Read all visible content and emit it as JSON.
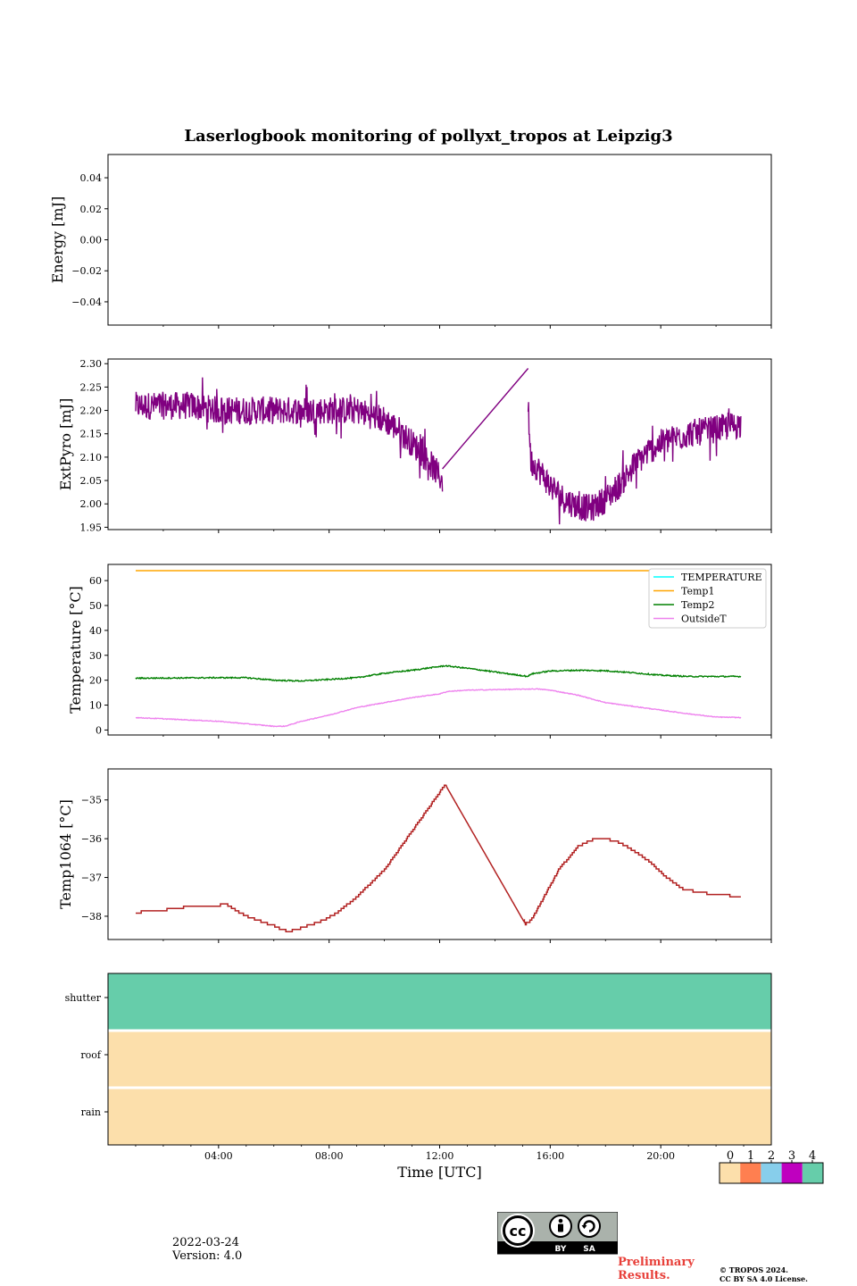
{
  "title": "Laserlogbook monitoring of pollyxt_tropos at Leipzig3",
  "footer": {
    "date": "2022-03-24",
    "version": "Version: 4.0",
    "preliminary_line1": "Preliminary",
    "preliminary_line2": "Results.",
    "copyright_line1": "© TROPOS 2024.",
    "copyright_line2": "CC BY SA 4.0 License.",
    "cc_label_by": "BY",
    "cc_label_sa": "SA",
    "cc_label_cc": "cc"
  },
  "colors": {
    "extpyro": "#800080",
    "temperature": "#00ffff",
    "temp1": "#ffa500",
    "temp2": "#008000",
    "outside": "#ee82ee",
    "temp1064": "#b22222",
    "status": [
      "#fcdfab",
      "#ff7f50",
      "#87ceeb",
      "#bf00bf",
      "#66cdaa"
    ]
  },
  "chart_data": [
    {
      "type": "line",
      "id": "energy",
      "ylabel": "Energy [mJ]",
      "ylim": [
        -0.055,
        0.055
      ],
      "yticks": [
        0.04,
        0.02,
        0.0,
        -0.02,
        -0.04
      ],
      "ytick_labels": [
        "0.04",
        "0.02",
        "0.00",
        "−0.02",
        "−0.04"
      ],
      "series": []
    },
    {
      "type": "line",
      "id": "extpyro",
      "ylabel": "ExtPyro [mJ]",
      "ylim": [
        1.945,
        2.31
      ],
      "yticks": [
        2.3,
        2.25,
        2.2,
        2.15,
        2.1,
        2.05,
        2.0,
        1.95
      ],
      "ytick_labels": [
        "2.30",
        "2.25",
        "2.20",
        "2.15",
        "2.10",
        "2.05",
        "2.00",
        "1.95"
      ],
      "series": [
        {
          "name": "ExtPyro",
          "noise": 0.03,
          "points": [
            [
              1.0,
              2.21
            ],
            [
              2.0,
              2.21
            ],
            [
              3.0,
              2.21
            ],
            [
              4.0,
              2.2
            ],
            [
              5.0,
              2.2
            ],
            [
              6.0,
              2.2
            ],
            [
              7.0,
              2.2
            ],
            [
              8.0,
              2.2
            ],
            [
              9.0,
              2.2
            ],
            [
              9.5,
              2.19
            ],
            [
              10.0,
              2.18
            ],
            [
              10.5,
              2.16
            ],
            [
              11.0,
              2.13
            ],
            [
              11.5,
              2.1
            ],
            [
              12.1,
              2.05
            ],
            [
              12.1,
              2.075
            ],
            [
              15.2,
              2.29
            ],
            [
              15.2,
              2.21
            ],
            [
              15.3,
              2.09
            ],
            [
              15.5,
              2.08
            ],
            [
              16.0,
              2.04
            ],
            [
              16.5,
              2.01
            ],
            [
              17.0,
              1.995
            ],
            [
              17.5,
              1.99
            ],
            [
              18.0,
              2.01
            ],
            [
              18.5,
              2.04
            ],
            [
              19.0,
              2.08
            ],
            [
              19.5,
              2.11
            ],
            [
              20.0,
              2.13
            ],
            [
              20.5,
              2.14
            ],
            [
              21.0,
              2.15
            ],
            [
              22.0,
              2.16
            ],
            [
              22.9,
              2.17
            ]
          ]
        }
      ]
    },
    {
      "type": "line",
      "id": "temperature",
      "ylabel": "Temperature [°C]",
      "ylim": [
        -2,
        66.5
      ],
      "yticks": [
        60,
        50,
        40,
        30,
        20,
        10,
        0
      ],
      "ytick_labels": [
        "60",
        "50",
        "40",
        "30",
        "20",
        "10",
        "0"
      ],
      "legend": [
        "TEMPERATURE",
        "Temp1",
        "Temp2",
        "OutsideT"
      ],
      "legend_position": "top-right",
      "series": [
        {
          "name": "TEMPERATURE",
          "points": []
        },
        {
          "name": "Temp1",
          "points": [
            [
              1.0,
              64.0
            ],
            [
              22.9,
              64.0
            ]
          ]
        },
        {
          "name": "Temp2",
          "points": [
            [
              1.0,
              20.8
            ],
            [
              4.0,
              21.0
            ],
            [
              5.0,
              21.0
            ],
            [
              6.0,
              20.0
            ],
            [
              7.0,
              19.7
            ],
            [
              8.0,
              20.3
            ],
            [
              9.0,
              21.0
            ],
            [
              10.0,
              22.8
            ],
            [
              11.0,
              24.0
            ],
            [
              12.0,
              25.5
            ],
            [
              12.2,
              25.8
            ],
            [
              13.0,
              24.8
            ],
            [
              14.0,
              23.3
            ],
            [
              15.2,
              21.5
            ],
            [
              15.3,
              22.5
            ],
            [
              16.0,
              23.7
            ],
            [
              17.0,
              24.0
            ],
            [
              18.0,
              23.8
            ],
            [
              19.0,
              23.0
            ],
            [
              20.0,
              22.0
            ],
            [
              21.0,
              21.5
            ],
            [
              22.9,
              21.5
            ]
          ]
        },
        {
          "name": "OutsideT",
          "points": [
            [
              1.0,
              5.0
            ],
            [
              2.0,
              4.5
            ],
            [
              3.0,
              4.0
            ],
            [
              4.0,
              3.5
            ],
            [
              5.0,
              2.5
            ],
            [
              6.0,
              1.5
            ],
            [
              6.4,
              1.5
            ],
            [
              7.0,
              3.5
            ],
            [
              8.0,
              6.0
            ],
            [
              9.0,
              9.0
            ],
            [
              10.0,
              11.0
            ],
            [
              11.0,
              13.0
            ],
            [
              12.0,
              14.5
            ],
            [
              12.3,
              15.5
            ],
            [
              13.0,
              16.0
            ],
            [
              15.5,
              16.5
            ],
            [
              16.0,
              16.0
            ],
            [
              17.0,
              14.0
            ],
            [
              18.0,
              11.0
            ],
            [
              19.0,
              9.5
            ],
            [
              20.0,
              8.0
            ],
            [
              21.0,
              6.5
            ],
            [
              22.0,
              5.2
            ],
            [
              22.9,
              5.0
            ]
          ]
        }
      ]
    },
    {
      "type": "line",
      "id": "temp1064",
      "ylabel": "Temp1064 [°C]",
      "ylim": [
        -38.6,
        -34.2
      ],
      "yticks": [
        -35,
        -36,
        -37,
        -38
      ],
      "ytick_labels": [
        "−35",
        "−36",
        "−37",
        "−38"
      ],
      "series": [
        {
          "name": "Temp1064",
          "step": 0.06,
          "points": [
            [
              1.0,
              -37.9
            ],
            [
              2.0,
              -37.85
            ],
            [
              2.3,
              -37.8
            ],
            [
              3.0,
              -37.75
            ],
            [
              4.3,
              -37.7
            ],
            [
              4.5,
              -37.8
            ],
            [
              5.0,
              -38.0
            ],
            [
              6.0,
              -38.25
            ],
            [
              6.5,
              -38.4
            ],
            [
              7.0,
              -38.3
            ],
            [
              7.8,
              -38.1
            ],
            [
              8.3,
              -37.9
            ],
            [
              9.0,
              -37.5
            ],
            [
              10.0,
              -36.8
            ],
            [
              11.0,
              -35.8
            ],
            [
              11.8,
              -35.0
            ],
            [
              12.2,
              -34.6
            ],
            [
              15.1,
              -38.2
            ],
            [
              15.3,
              -38.1
            ],
            [
              15.7,
              -37.6
            ],
            [
              16.3,
              -36.8
            ],
            [
              17.0,
              -36.2
            ],
            [
              17.6,
              -36.0
            ],
            [
              18.0,
              -36.0
            ],
            [
              18.5,
              -36.1
            ],
            [
              19.0,
              -36.3
            ],
            [
              19.6,
              -36.6
            ],
            [
              20.2,
              -37.0
            ],
            [
              20.8,
              -37.3
            ],
            [
              21.5,
              -37.4
            ],
            [
              22.9,
              -37.5
            ]
          ]
        }
      ]
    },
    {
      "type": "heatmap",
      "id": "status",
      "xlabel": "Time [UTC]",
      "xlim": [
        0,
        24
      ],
      "xticks": [
        4,
        8,
        12,
        16,
        20
      ],
      "xtick_labels": [
        "04:00",
        "08:00",
        "12:00",
        "16:00",
        "20:00"
      ],
      "rows": [
        {
          "label": "shutter",
          "value": 4
        },
        {
          "label": "roof",
          "value": 0
        },
        {
          "label": "rain",
          "value": 0
        }
      ],
      "colorbar": {
        "ticks": [
          "0",
          "1",
          "2",
          "3",
          "4"
        ]
      }
    }
  ]
}
